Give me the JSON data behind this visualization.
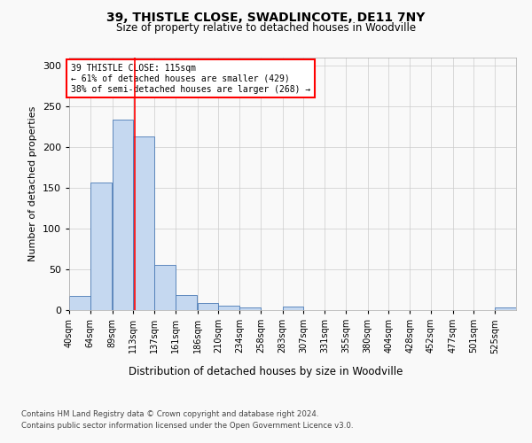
{
  "title1": "39, THISTLE CLOSE, SWADLINCOTE, DE11 7NY",
  "title2": "Size of property relative to detached houses in Woodville",
  "xlabel": "Distribution of detached houses by size in Woodville",
  "ylabel": "Number of detached properties",
  "footer1": "Contains HM Land Registry data © Crown copyright and database right 2024.",
  "footer2": "Contains public sector information licensed under the Open Government Licence v3.0.",
  "annotation_line1": "39 THISTLE CLOSE: 115sqm",
  "annotation_line2": "← 61% of detached houses are smaller (429)",
  "annotation_line3": "38% of semi-detached houses are larger (268) →",
  "bar_color": "#c5d8f0",
  "bar_edge_color": "#4a7ab5",
  "red_line_x": 115,
  "red_line_color": "red",
  "ylim": [
    0,
    310
  ],
  "categories": [
    "40sqm",
    "64sqm",
    "89sqm",
    "113sqm",
    "137sqm",
    "161sqm",
    "186sqm",
    "210sqm",
    "234sqm",
    "258sqm",
    "283sqm",
    "307sqm",
    "331sqm",
    "355sqm",
    "380sqm",
    "404sqm",
    "428sqm",
    "452sqm",
    "477sqm",
    "501sqm",
    "525sqm"
  ],
  "bin_edges": [
    40,
    64,
    89,
    113,
    137,
    161,
    186,
    210,
    234,
    258,
    283,
    307,
    331,
    355,
    380,
    404,
    428,
    452,
    477,
    501,
    525,
    549
  ],
  "values": [
    17,
    157,
    234,
    213,
    56,
    19,
    9,
    5,
    3,
    0,
    4,
    0,
    0,
    0,
    0,
    0,
    0,
    0,
    0,
    0,
    3
  ],
  "yticks": [
    0,
    50,
    100,
    150,
    200,
    250,
    300
  ],
  "background_color": "#f9f9f9",
  "grid_color": "#cccccc"
}
